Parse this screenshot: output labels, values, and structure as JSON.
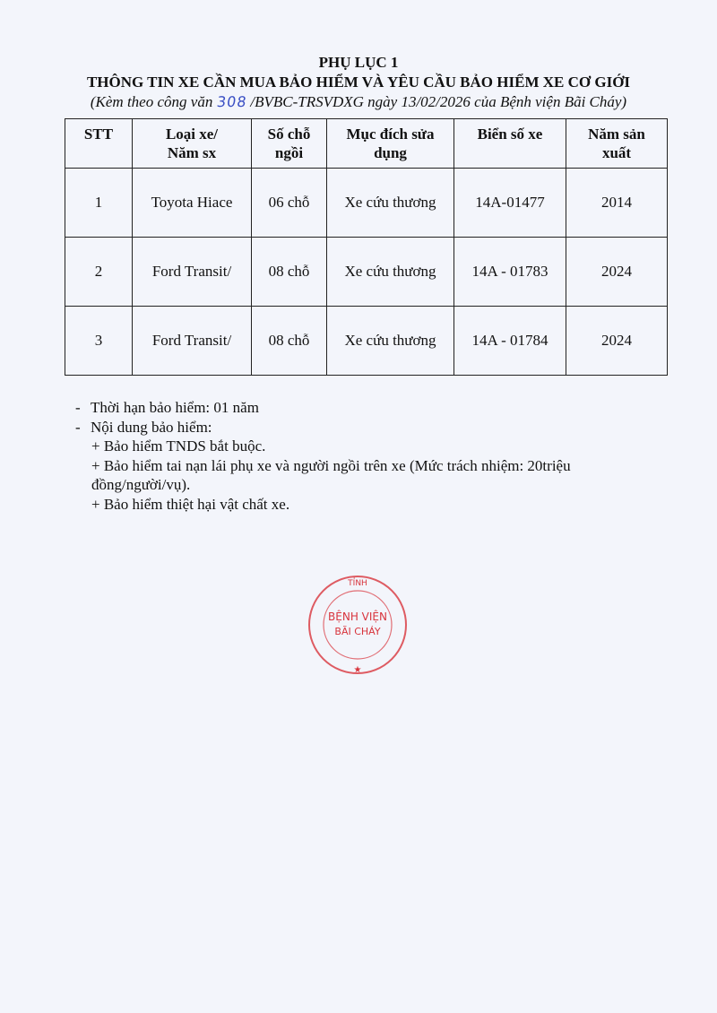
{
  "header": {
    "appendix_title": "PHỤ LỤC 1",
    "main_title": "THÔNG TIN XE CẦN MUA BẢO HIỂM VÀ YÊU CẦU BẢO HIỂM XE CƠ GIỚI",
    "subtitle_prefix": "(Kèm theo công văn",
    "doc_number_handwritten": "308",
    "subtitle_suffix": "/BVBC-TRSVDXG ngày 13/02/2026 của Bệnh viện Bãi Cháy)"
  },
  "stamp": {
    "text_top": "TỈNH",
    "text_center_1": "BỆNH VIỆN",
    "text_center_2": "BÃI CHÁY",
    "color": "#d8343c"
  },
  "table": {
    "headers": [
      [
        "STT"
      ],
      [
        "Loại xe/",
        "Năm sx"
      ],
      [
        "Số chỗ",
        "ngồi"
      ],
      [
        "Mục đích sửa",
        "dụng"
      ],
      [
        "Biển số xe"
      ],
      [
        "Năm sản",
        "xuất"
      ]
    ],
    "rows": [
      [
        "1",
        "Toyota Hiace",
        "06 chỗ",
        "Xe cứu thương",
        "14A-01477",
        "2014"
      ],
      [
        "2",
        "Ford Transit/",
        "08 chỗ",
        "Xe cứu thương",
        "14A - 01783",
        "2024"
      ],
      [
        "3",
        "Ford Transit/",
        "08 chỗ",
        "Xe cứu thương",
        "14A - 01784",
        "2024"
      ]
    ]
  },
  "body": {
    "items": [
      {
        "bullet": "-",
        "text": "Thời hạn bảo hiểm: 01 năm"
      },
      {
        "bullet": "-",
        "text": "Nội dung bảo hiểm:"
      }
    ],
    "sub_items": [
      "+ Bảo hiểm TNDS bắt buộc.",
      "+ Bảo hiểm tai nạn lái phụ xe và người ngồi trên xe (Mức trách nhiệm: 20triệu",
      "đồng/người/vụ).",
      "+ Bảo hiểm thiệt hại vật chất xe."
    ]
  }
}
